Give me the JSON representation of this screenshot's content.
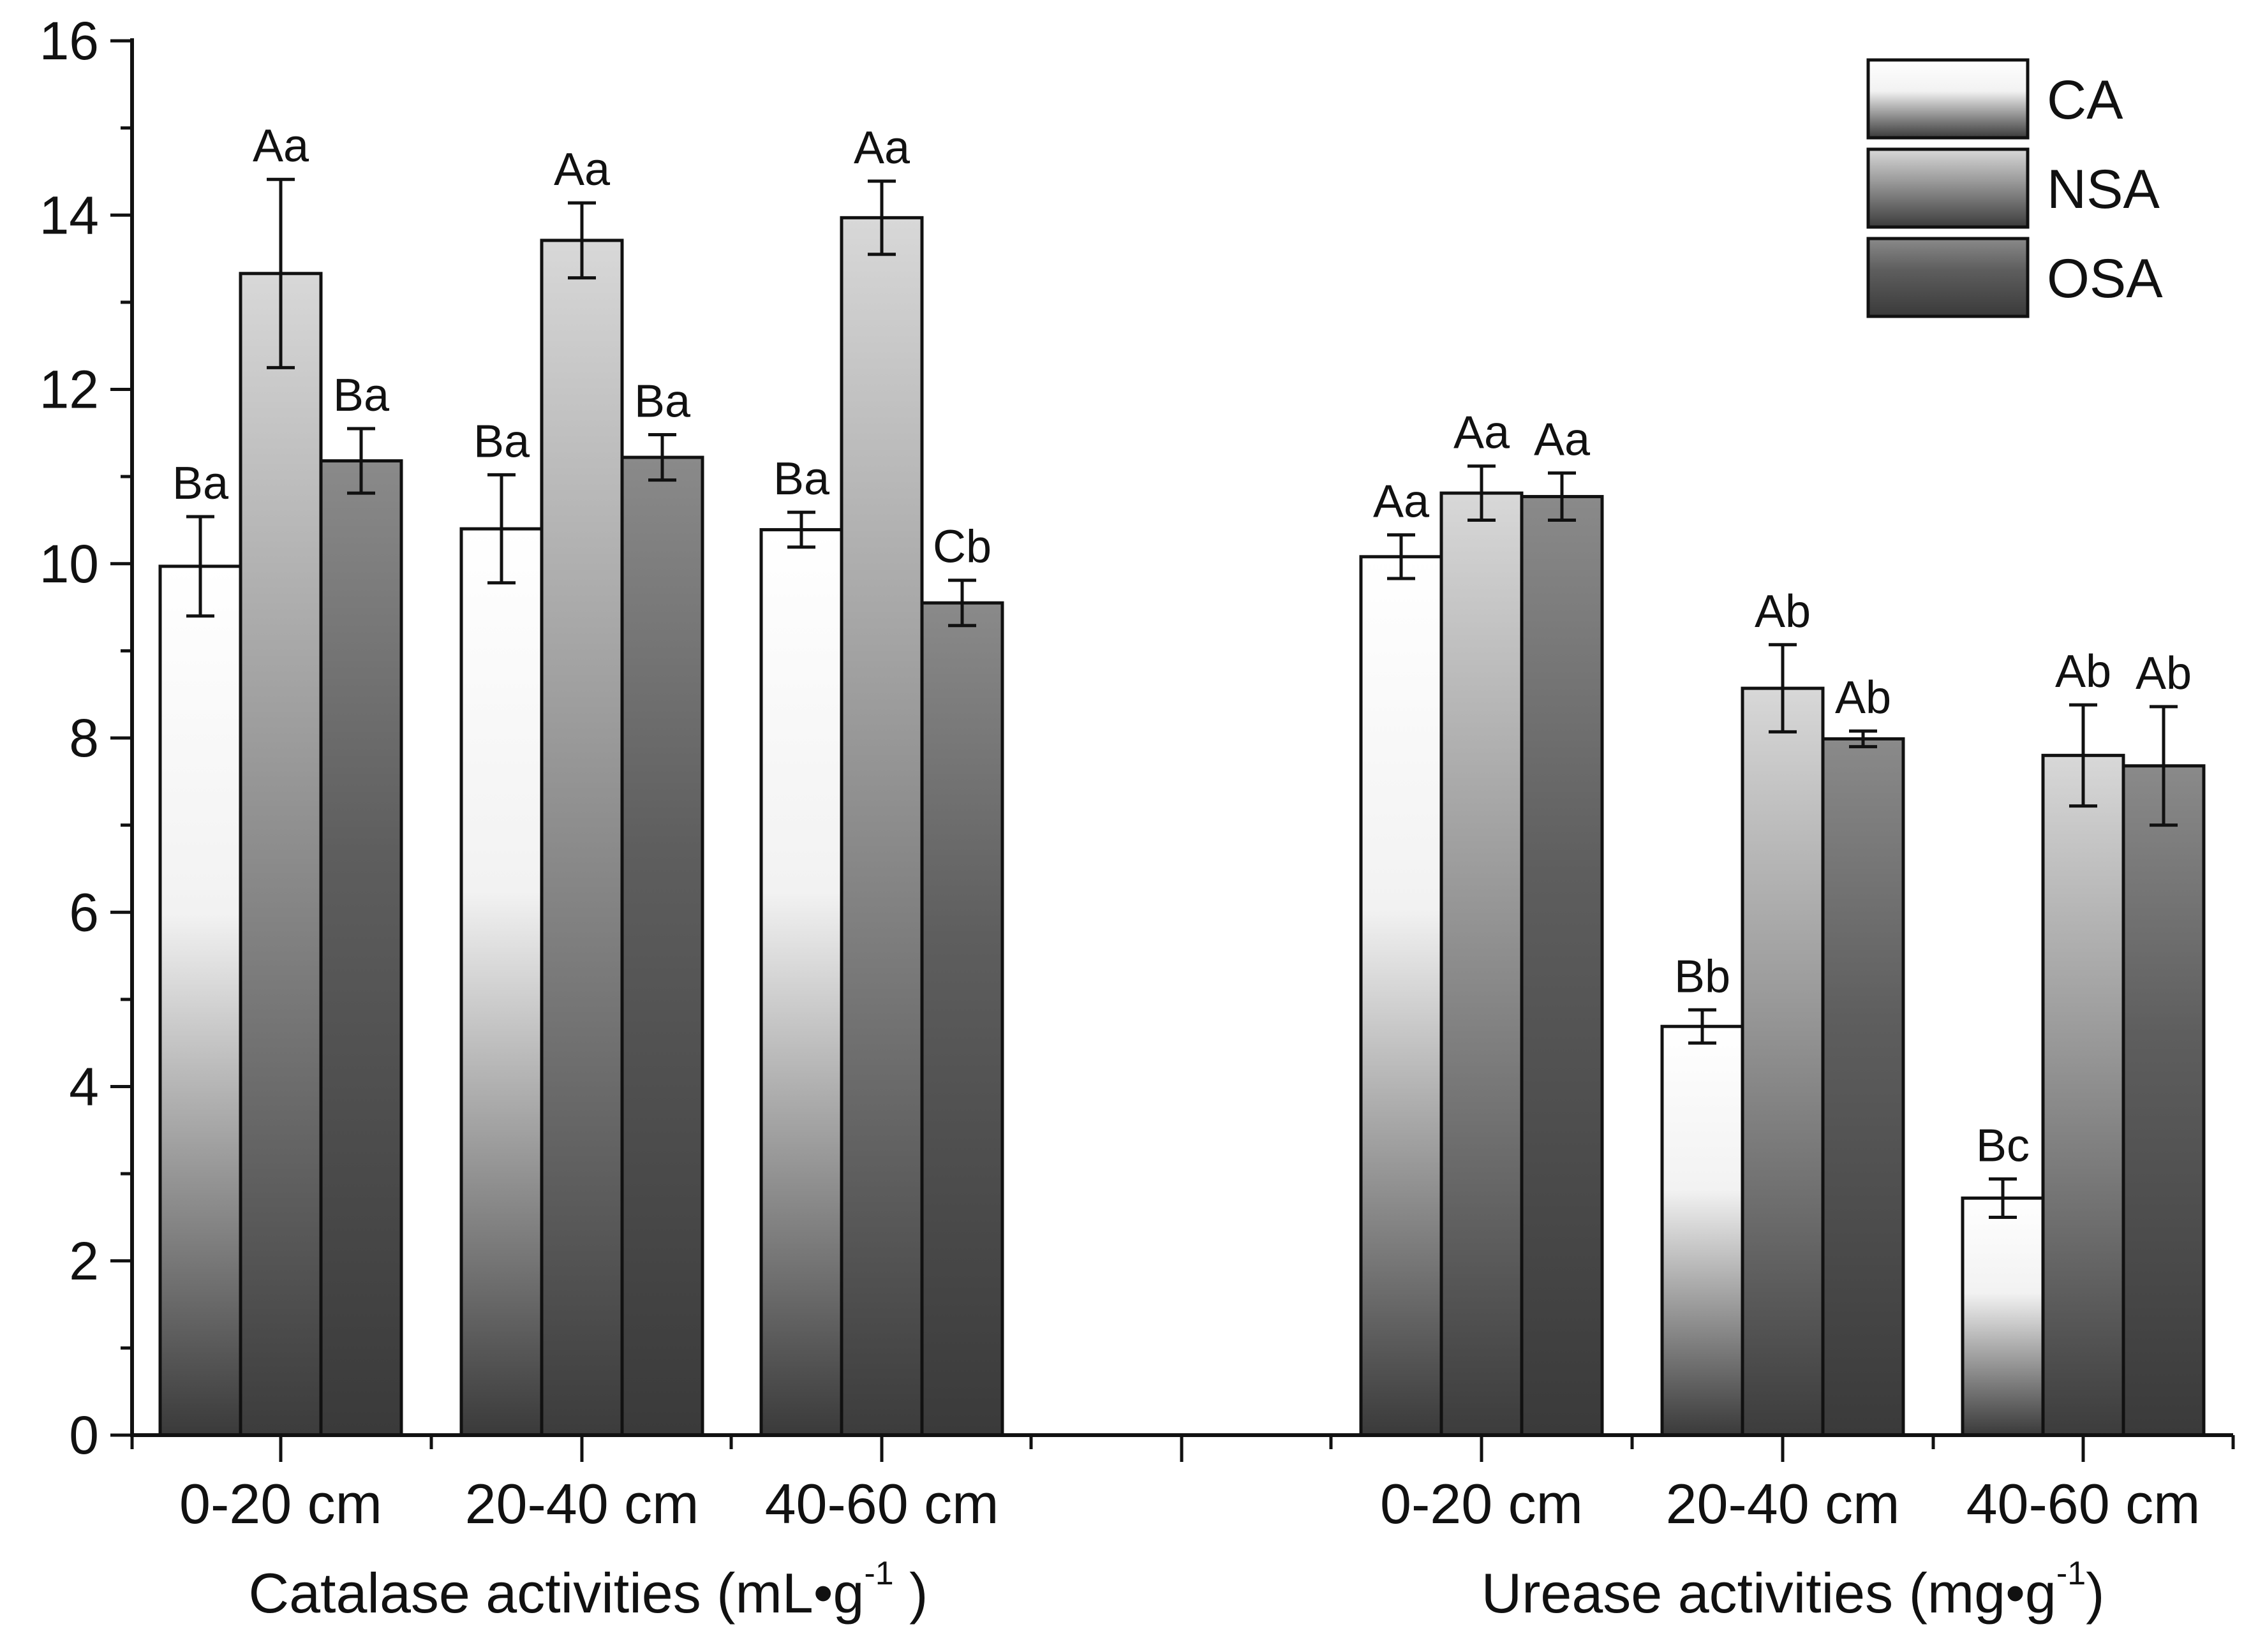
{
  "chart_data": {
    "type": "bar",
    "title": "",
    "ylabel": "",
    "ylim": [
      0,
      16
    ],
    "yticks": [
      0,
      2,
      4,
      6,
      8,
      10,
      12,
      14,
      16
    ],
    "series_names": [
      "CA",
      "NSA",
      "OSA"
    ],
    "legend_position": "top-right",
    "groups": [
      {
        "label_main": "Catalase activities (mL•g",
        "label_sup": "-1",
        "label_end": " )",
        "categories": [
          {
            "label": "0-20 cm",
            "bars": [
              {
                "series": "CA",
                "value": 9.97,
                "error": 0.57,
                "sig": "Ba"
              },
              {
                "series": "NSA",
                "value": 13.33,
                "error": 1.08,
                "sig": "Aa"
              },
              {
                "series": "OSA",
                "value": 11.18,
                "error": 0.37,
                "sig": "Ba"
              }
            ]
          },
          {
            "label": "20-40 cm",
            "bars": [
              {
                "series": "CA",
                "value": 10.4,
                "error": 0.62,
                "sig": "Ba"
              },
              {
                "series": "NSA",
                "value": 13.71,
                "error": 0.43,
                "sig": "Aa"
              },
              {
                "series": "OSA",
                "value": 11.22,
                "error": 0.26,
                "sig": "Ba"
              }
            ]
          },
          {
            "label": "40-60 cm",
            "bars": [
              {
                "series": "CA",
                "value": 10.39,
                "error": 0.2,
                "sig": "Ba"
              },
              {
                "series": "NSA",
                "value": 13.97,
                "error": 0.42,
                "sig": "Aa"
              },
              {
                "series": "OSA",
                "value": 9.55,
                "error": 0.26,
                "sig": "Cb"
              }
            ]
          }
        ]
      },
      {
        "label_main": "Urease activities (mg•g",
        "label_sup": "-1",
        "label_end": ")",
        "categories": [
          {
            "label": "0-20 cm",
            "bars": [
              {
                "series": "CA",
                "value": 10.08,
                "error": 0.25,
                "sig": "Aa"
              },
              {
                "series": "NSA",
                "value": 10.81,
                "error": 0.31,
                "sig": "Aa"
              },
              {
                "series": "OSA",
                "value": 10.77,
                "error": 0.27,
                "sig": "Aa"
              }
            ]
          },
          {
            "label": "20-40 cm",
            "bars": [
              {
                "series": "CA",
                "value": 4.69,
                "error": 0.19,
                "sig": "Bb"
              },
              {
                "series": "NSA",
                "value": 8.57,
                "error": 0.5,
                "sig": "Ab"
              },
              {
                "series": "OSA",
                "value": 7.99,
                "error": 0.09,
                "sig": "Ab"
              }
            ]
          },
          {
            "label": "40-60 cm",
            "bars": [
              {
                "series": "CA",
                "value": 2.72,
                "error": 0.22,
                "sig": "Bc"
              },
              {
                "series": "NSA",
                "value": 7.8,
                "error": 0.58,
                "sig": "Ab"
              },
              {
                "series": "OSA",
                "value": 7.68,
                "error": 0.68,
                "sig": "Ab"
              }
            ]
          }
        ]
      }
    ]
  },
  "colors": {
    "axis": "#111111",
    "bar_stroke": "#111111",
    "gradients": {
      "CA": [
        "#ffffff",
        "#f2f2f2",
        "#3a3a3a"
      ],
      "NSA": [
        "#d8d8d8",
        "#9c9c9c",
        "#3c3c3c"
      ],
      "OSA": [
        "#8a8a8a",
        "#5e5e5e",
        "#3a3a3a"
      ]
    }
  }
}
